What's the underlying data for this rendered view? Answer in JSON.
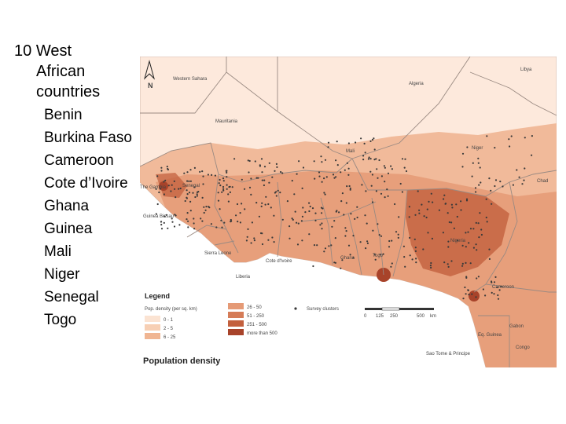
{
  "slide": {
    "heading_number": "10",
    "heading_line1": "West",
    "heading_line2": "African",
    "heading_line3": "countries",
    "countries": [
      "Benin",
      "Burkina Faso",
      "Cameroon",
      "Cote d’Ivoire",
      "Ghana",
      "Guinea",
      "Mali",
      "Niger",
      "Senegal",
      "Togo"
    ]
  },
  "map": {
    "north_label": "N",
    "title": "Population density",
    "region_labels": {
      "western_sahara": "Western Sahara",
      "libya": "Libya",
      "algeria": "Algeria",
      "mauritania": "Mauritania",
      "mali": "Mali",
      "niger": "Niger",
      "chad": "Chad",
      "senegal": "Senegal",
      "gambia": "The Gambia",
      "guinea_bissau": "Guinea Bissau",
      "nigeria": "Nigeria",
      "sierra_leone": "Sierra Leone",
      "liberia": "Liberia",
      "cote_divoire": "Cote d'Ivoire",
      "ghana": "Ghana",
      "togo": "Togo",
      "cameroon": "Cameroon",
      "eq_guinea": "Eq. Guinea",
      "gabon": "Gabon",
      "congo": "Congo",
      "sao_tome": "Sao Tome & Principe"
    },
    "legend": {
      "title": "Legend",
      "density_heading": "Pop. density (per sq. km)",
      "classes": [
        {
          "label": "0 - 1",
          "color": "#fbe3d2"
        },
        {
          "label": "2 - 5",
          "color": "#f7cfb4"
        },
        {
          "label": "6 - 25",
          "color": "#f0b592"
        },
        {
          "label": "26 - 50",
          "color": "#e59a76"
        },
        {
          "label": "51 - 250",
          "color": "#d57c58"
        },
        {
          "label": "251 - 500",
          "color": "#c3603e"
        },
        {
          "label": "more than 500",
          "color": "#a8432a"
        }
      ],
      "survey_clusters": "Survey clusters",
      "scale_ticks": [
        "0",
        "125",
        "250",
        "500",
        "km"
      ]
    },
    "colors": {
      "sea": "#ffffff",
      "desert": "#fde9dc",
      "border": "#9a8a82",
      "cluster": "#3a3a3a"
    }
  }
}
